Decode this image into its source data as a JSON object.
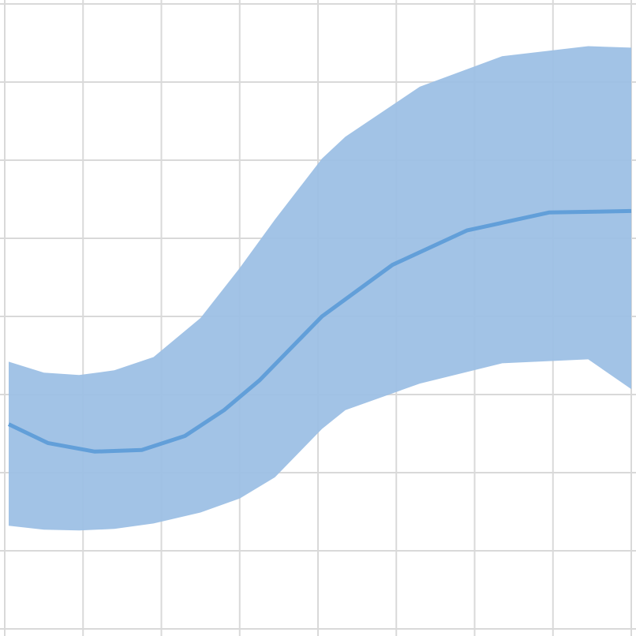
{
  "chart_data": {
    "type": "area",
    "grid": true,
    "xlim": [
      0,
      8
    ],
    "ylim": [
      0,
      8
    ],
    "colors": {
      "band_fill": "#9dc0e5",
      "line": "#629fd9",
      "grid": "#d9d9d9",
      "background": "#ffffff"
    },
    "series": [
      {
        "kind": "band",
        "x": [
          0.05,
          0.5,
          0.95,
          1.4,
          1.9,
          2.5,
          3.0,
          3.45,
          4.05,
          4.35,
          5.3,
          6.35,
          7.45,
          8.0
        ],
        "upper": [
          3.42,
          3.28,
          3.25,
          3.31,
          3.48,
          3.98,
          4.62,
          5.24,
          6.02,
          6.3,
          6.94,
          7.33,
          7.46,
          7.44
        ],
        "lower": [
          1.32,
          1.27,
          1.26,
          1.28,
          1.35,
          1.49,
          1.67,
          1.94,
          2.56,
          2.8,
          3.14,
          3.4,
          3.45,
          3.07
        ]
      },
      {
        "kind": "line",
        "x": [
          0.05,
          0.55,
          1.15,
          1.75,
          2.3,
          2.8,
          3.25,
          4.05,
          4.95,
          5.9,
          6.95,
          8.0
        ],
        "y": [
          2.62,
          2.38,
          2.27,
          2.29,
          2.47,
          2.8,
          3.18,
          4.0,
          4.66,
          5.1,
          5.33,
          5.35
        ]
      }
    ]
  }
}
